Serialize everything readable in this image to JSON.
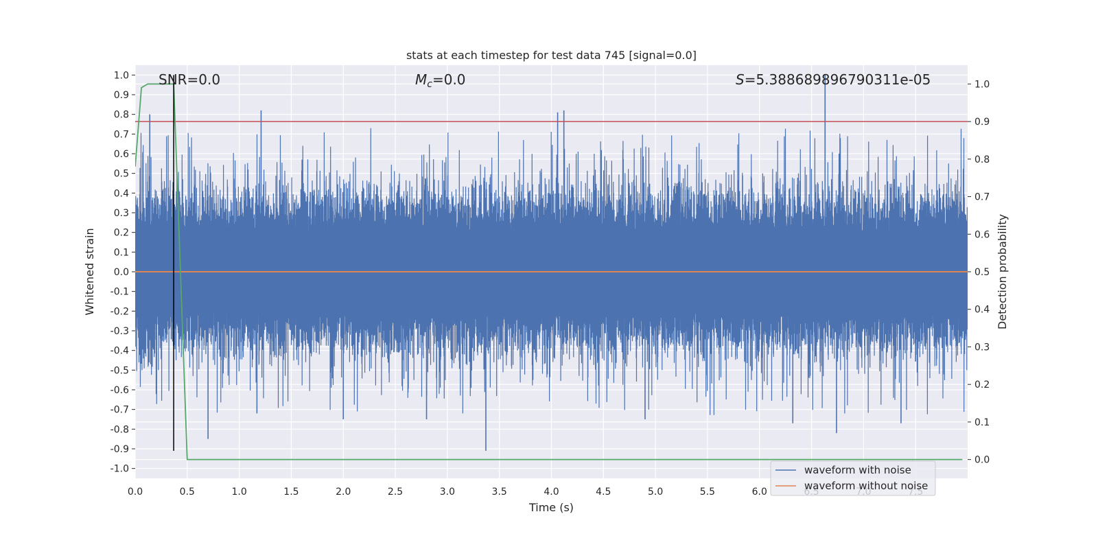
{
  "chart_data": {
    "type": "line",
    "title": "stats at each timestep for test data 745 [signal=0.0]",
    "xlabel": "Time (s)",
    "ylabel_left": "Whitened strain",
    "ylabel_right": "Detection probability",
    "xlim": [
      0.0,
      8.0
    ],
    "ylim_left": [
      -1.05,
      1.05
    ],
    "ylim_right": [
      -0.05,
      1.05
    ],
    "x_ticks": [
      "0.0",
      "0.5",
      "1.0",
      "1.5",
      "2.0",
      "2.5",
      "3.0",
      "3.5",
      "4.0",
      "4.5",
      "5.0",
      "5.5",
      "6.0",
      "6.5",
      "7.0",
      "7.5"
    ],
    "y_left_ticks": [
      "1.0",
      "0.9",
      "0.8",
      "0.7",
      "0.6",
      "0.5",
      "0.4",
      "0.3",
      "0.2",
      "0.1",
      "0.0",
      "-0.1",
      "-0.2",
      "-0.3",
      "-0.4",
      "-0.5",
      "-0.6",
      "-0.7",
      "-0.8",
      "-0.9",
      "-1.0"
    ],
    "y_right_ticks": [
      "1.0",
      "0.9",
      "0.8",
      "0.7",
      "0.6",
      "0.5",
      "0.4",
      "0.3",
      "0.2",
      "0.1",
      "0.0"
    ],
    "grid": true,
    "legend_position": "bottom-right",
    "annotations": {
      "snr": "SNR=0.0",
      "mc_symbol": "M",
      "mc_sub": "c",
      "mc_value": "=0.0",
      "s_symbol": "S",
      "s_value": "=5.388689896790311e-05"
    },
    "series": [
      {
        "name": "waveform with noise",
        "axis": "left",
        "color": "#4c72b0",
        "kind": "noise",
        "x_range": [
          0.0,
          8.0
        ],
        "envelope": {
          "pos_max": 1.0,
          "neg_min": -0.91,
          "dense_band": [
            -0.37,
            0.37
          ]
        },
        "marked_peaks": [
          {
            "x": 0.14,
            "y": 0.8
          },
          {
            "x": 1.21,
            "y": 0.82
          },
          {
            "x": 4.06,
            "y": 0.81
          },
          {
            "x": 4.12,
            "y": 0.82
          },
          {
            "x": 6.63,
            "y": 1.0
          },
          {
            "x": 3.37,
            "y": -0.91
          },
          {
            "x": 0.7,
            "y": -0.85
          },
          {
            "x": 6.74,
            "y": -0.82
          },
          {
            "x": 1.17,
            "y": -0.72
          },
          {
            "x": 2.0,
            "y": -0.75
          },
          {
            "x": 2.8,
            "y": -0.75
          },
          {
            "x": 4.9,
            "y": -0.75
          },
          {
            "x": 6.32,
            "y": -0.77
          },
          {
            "x": 7.36,
            "y": -0.77
          }
        ]
      },
      {
        "name": "waveform without noise",
        "axis": "left",
        "color": "#dd8452",
        "x": [
          0.0,
          8.0
        ],
        "y": [
          0.0,
          0.0
        ]
      },
      {
        "axis": "right",
        "color": "#55a868",
        "x": [
          0.0,
          0.06,
          0.12,
          0.25,
          0.37,
          0.5,
          7.95
        ],
        "y": [
          0.78,
          0.99,
          1.0,
          1.0,
          1.0,
          0.0,
          0.0
        ]
      }
    ],
    "threshold_line": {
      "axis": "right",
      "y": 0.9,
      "color": "#c44e52"
    },
    "marker_line": {
      "x": 0.37,
      "y": [
        -0.91,
        1.0
      ],
      "color": "#000000"
    }
  }
}
